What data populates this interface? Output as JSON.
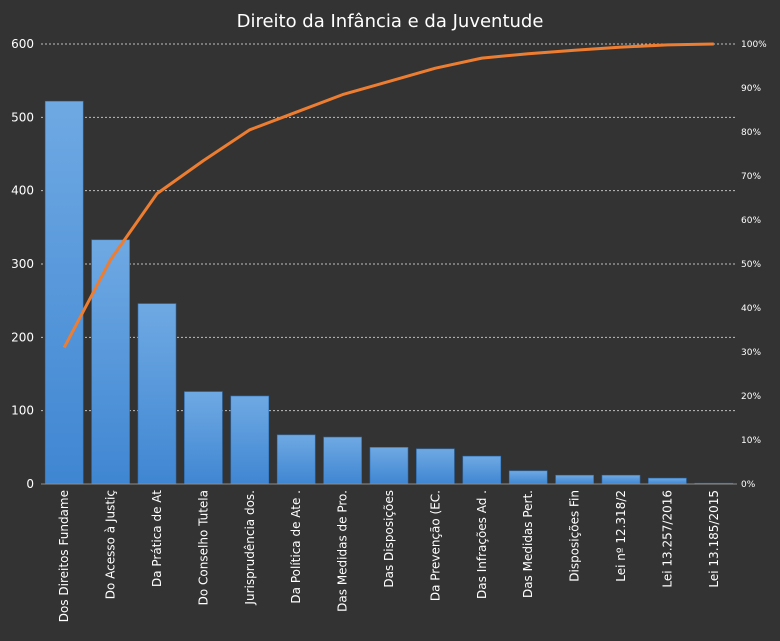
{
  "chart_data": {
    "type": "bar",
    "title": "Direito da Infância e da Juventude",
    "categories": [
      "Dos Direitos Fundame",
      "Do Acesso à Justiç",
      "Da Prática de At",
      "Do Conselho Tutela",
      "Jurisprudência dos.",
      "Da Política de Ate .",
      "Das Medidas de Pro.",
      "Das Disposições",
      "Da Prevenção (EC.",
      "Das Infrações Ad .",
      "Das Medidas Pert.",
      "Disposições Fin",
      "Lei nº 12.318/2",
      "Lei 13.257/2016",
      "Lei 13.185/2015"
    ],
    "series": [
      {
        "type": "bar",
        "values": [
          522,
          333,
          246,
          126,
          120,
          67,
          64,
          50,
          48,
          38,
          18,
          12,
          12,
          8,
          1
        ]
      },
      {
        "type": "line",
        "axis": "secondary",
        "values": [
          31.0,
          51.0,
          66.0,
          73.5,
          80.5,
          84.5,
          88.5,
          91.5,
          94.5,
          96.8,
          97.8,
          98.6,
          99.3,
          99.8,
          100
        ]
      }
    ],
    "ylim": [
      0,
      600
    ],
    "yticks": [
      "0",
      "100",
      "200",
      "300",
      "400",
      "500",
      "600"
    ],
    "y2lim": [
      0,
      100
    ],
    "y2ticks": [
      "0%",
      "10%",
      "20%",
      "30%",
      "40%",
      "50%",
      "60%",
      "70%",
      "80%",
      "90%",
      "100%"
    ],
    "grid": true,
    "legend": "none",
    "colors": {
      "background": "#333333",
      "bar": "#4a8fd6",
      "bar_light": "#6fa9e3",
      "line": "#ed7d31",
      "grid": "#bfbfbf",
      "text": "#ffffff"
    }
  }
}
